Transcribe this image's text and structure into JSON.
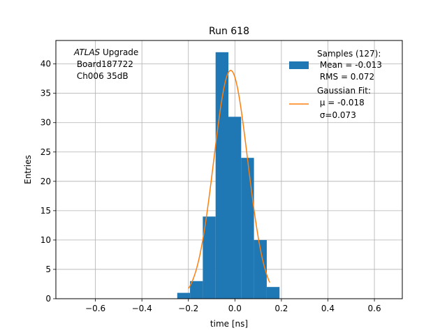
{
  "chart_data": {
    "type": "bar",
    "title": "Run 618",
    "xlabel": "time [ns]",
    "ylabel": "Entries",
    "xlim": [
      -0.77,
      0.72
    ],
    "ylim": [
      0,
      44
    ],
    "x_ticks": [
      -0.6,
      -0.4,
      -0.2,
      0.0,
      0.2,
      0.4,
      0.6
    ],
    "x_tick_labels": [
      "−0.6",
      "−0.4",
      "−0.2",
      "0.0",
      "0.2",
      "0.4",
      "0.6"
    ],
    "y_ticks": [
      0,
      5,
      10,
      15,
      20,
      25,
      30,
      35,
      40
    ],
    "y_tick_labels": [
      "0",
      "5",
      "10",
      "15",
      "20",
      "25",
      "30",
      "35",
      "40"
    ],
    "grid": true,
    "legend_position": "top-right",
    "histogram": {
      "name": "Samples (127):",
      "color": "#1f77b4",
      "bin_edges": [
        -0.248,
        -0.193,
        -0.138,
        -0.083,
        -0.028,
        0.027,
        0.082,
        0.137,
        0.192
      ],
      "counts": [
        1,
        3,
        14,
        42,
        31,
        24,
        10,
        2
      ]
    },
    "gaussian_fit": {
      "name": "Gaussian Fit:",
      "color": "#ff7f0e",
      "mu": -0.018,
      "sigma": 0.073,
      "amplitude": 38.9,
      "x_range": [
        -0.2,
        0.15
      ]
    },
    "legend": {
      "samples_lines": [
        "Samples (127):",
        " Mean = -0.013",
        " RMS = 0.072"
      ],
      "fit_lines": [
        "Gaussian Fit:",
        " μ = -0.018",
        " σ=0.073"
      ]
    },
    "annotation": {
      "italic_part": "ATLAS",
      "rest_first_line": " Upgrade",
      "lines": [
        " Board187722",
        " Ch006 35dB"
      ]
    }
  }
}
